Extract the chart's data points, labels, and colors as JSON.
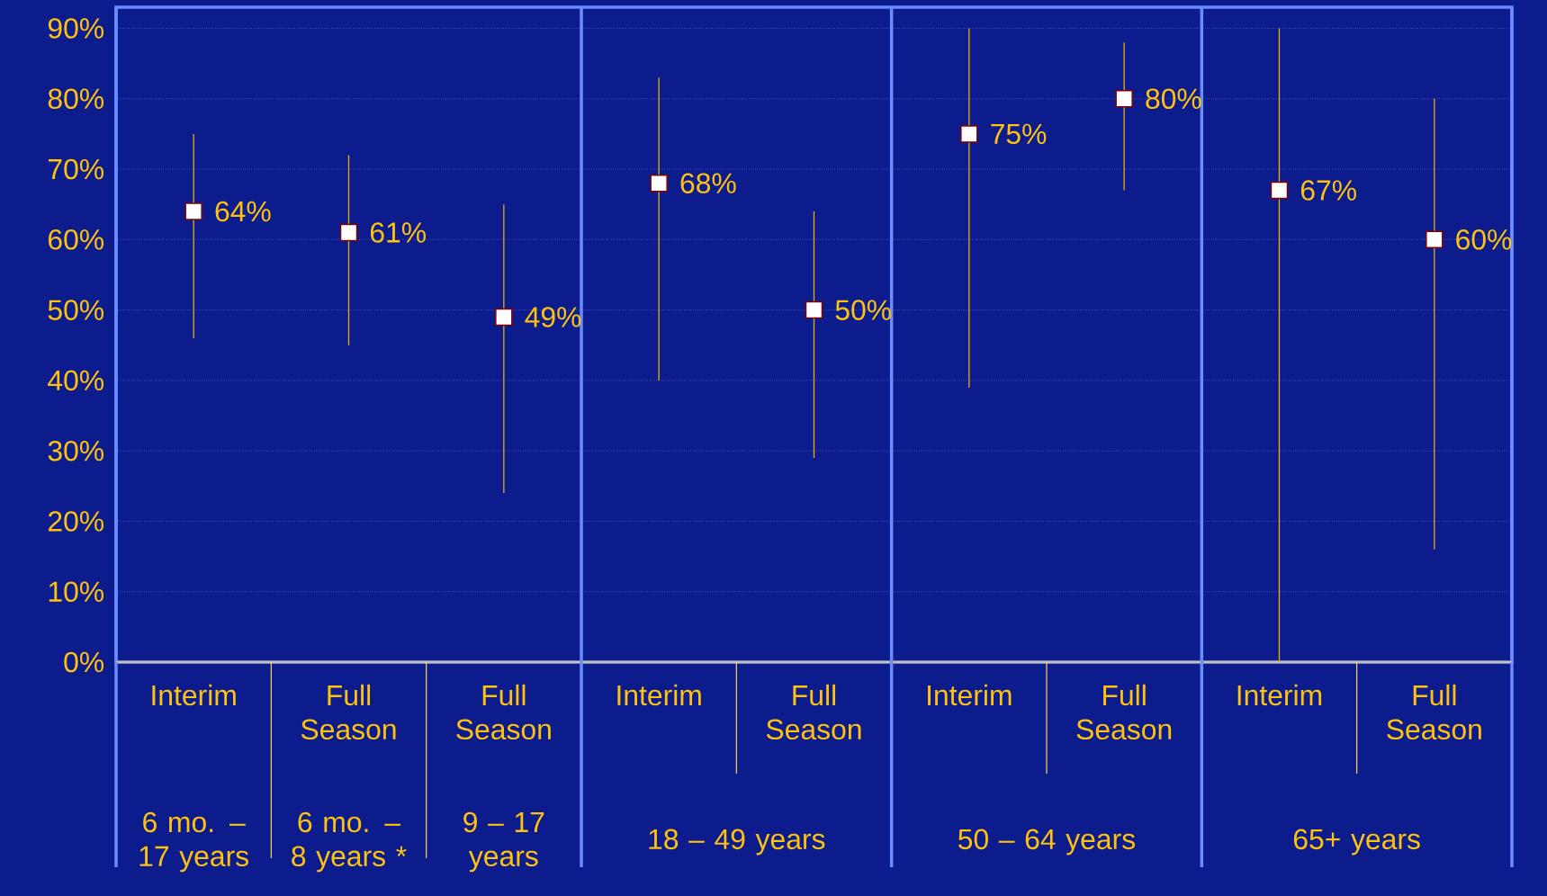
{
  "chart_data": {
    "type": "scatter",
    "categories": [
      "Interim",
      "Full Season",
      "Full Season",
      "Interim",
      "Full Season",
      "Interim",
      "Full Season",
      "Interim",
      "Full Season"
    ],
    "values": [
      64,
      61,
      49,
      68,
      50,
      75,
      80,
      67,
      60
    ],
    "errors": [
      [
        46,
        75
      ],
      [
        45,
        72
      ],
      [
        24,
        65
      ],
      [
        40,
        83
      ],
      [
        29,
        64
      ],
      [
        39,
        90
      ],
      [
        67,
        88
      ],
      [
        0,
        90
      ],
      [
        16,
        80
      ]
    ],
    "value_labels": [
      "64%",
      "61%",
      "49%",
      "68%",
      "50%",
      "75%",
      "80%",
      "67%",
      "60%"
    ],
    "color": "#ffffff",
    "marker": "square",
    "ylim": [
      0,
      93
    ],
    "yticks": [
      {
        "value": 0,
        "label": "0%"
      },
      {
        "value": 10,
        "label": "10%"
      },
      {
        "value": 20,
        "label": "20%"
      },
      {
        "value": 30,
        "label": "30%"
      },
      {
        "value": 40,
        "label": "40%"
      },
      {
        "value": 50,
        "label": "50%"
      },
      {
        "value": 60,
        "label": "60%"
      },
      {
        "value": 70,
        "label": "70%"
      },
      {
        "value": 80,
        "label": "80%"
      },
      {
        "value": 90,
        "label": "90%"
      }
    ],
    "grid": "y",
    "annotations": [
      "6 mo. – 17 years",
      "6 mo. – 8 years *",
      "9 – 17 years",
      "18 – 49 years",
      "50 – 64 years",
      "65+ years"
    ]
  }
}
